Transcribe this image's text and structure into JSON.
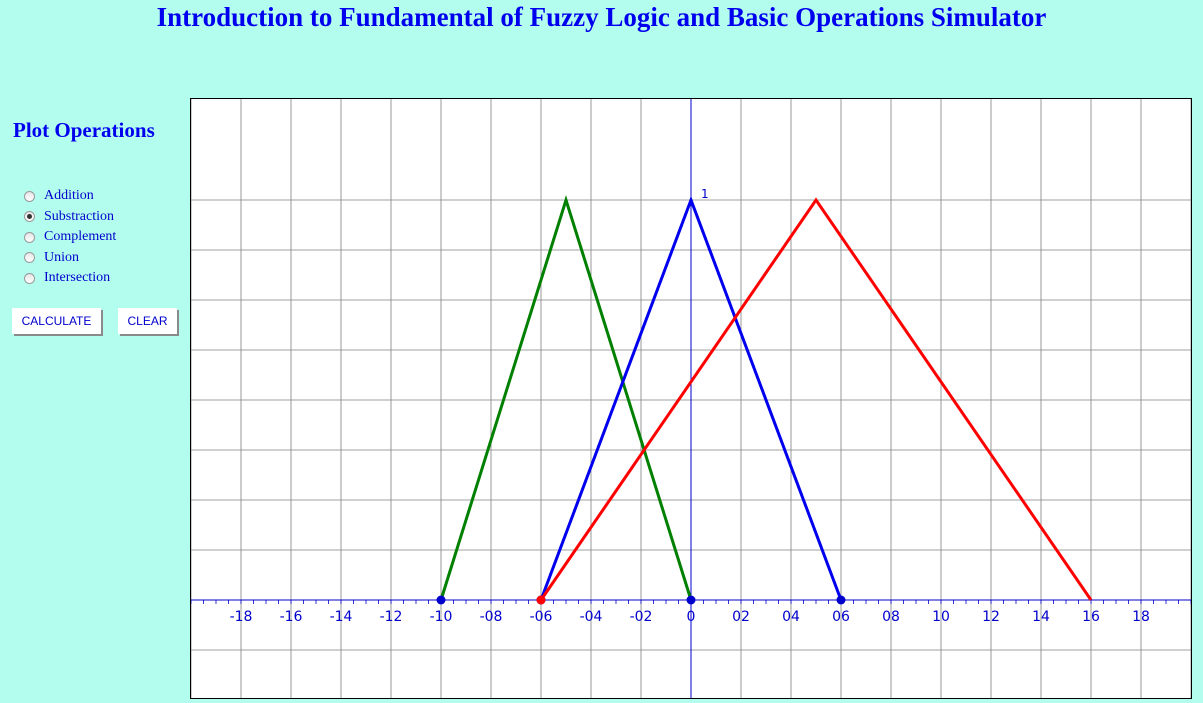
{
  "header": {
    "title": "Introduction to Fundamental of Fuzzy Logic and Basic Operations Simulator"
  },
  "sidebar": {
    "title": "Plot Operations",
    "operations": [
      {
        "label": "Addition",
        "checked": false
      },
      {
        "label": "Substraction",
        "checked": true
      },
      {
        "label": "Complement",
        "checked": false
      },
      {
        "label": "Union",
        "checked": false
      },
      {
        "label": "Intersection",
        "checked": false
      }
    ],
    "calculate_label": "CALCULATE",
    "clear_label": "CLEAR"
  },
  "chart_data": {
    "type": "line",
    "xlim": [
      -20,
      20
    ],
    "ylim": [
      -0.2,
      1.0
    ],
    "grid": true,
    "x_tick_labels": [
      "-18",
      "-16",
      "-14",
      "-12",
      "-10",
      "-08",
      "-06",
      "-04",
      "-02",
      "0",
      "02",
      "04",
      "06",
      "08",
      "10",
      "12",
      "14",
      "16",
      "18"
    ],
    "x_tick_values": [
      -18,
      -16,
      -14,
      -12,
      -10,
      -8,
      -6,
      -4,
      -2,
      0,
      2,
      4,
      6,
      8,
      10,
      12,
      14,
      16,
      18
    ],
    "y_peak_label": "1",
    "series": [
      {
        "color": "#008000",
        "x": [
          -10,
          -5,
          0
        ],
        "y": [
          0,
          1,
          0
        ]
      },
      {
        "color": "#0000ee",
        "x": [
          -6,
          0,
          6
        ],
        "y": [
          0,
          1,
          0
        ]
      },
      {
        "color": "#ff0000",
        "x": [
          -6,
          5,
          16
        ],
        "y": [
          0,
          1,
          0
        ]
      }
    ],
    "points": [
      {
        "x": -10,
        "y": 0,
        "color": "#0000cc"
      },
      {
        "x": -6,
        "y": 0,
        "color": "#0000cc"
      },
      {
        "x": 0,
        "y": 0,
        "color": "#0000cc"
      },
      {
        "x": 6,
        "y": 0,
        "color": "#0000cc"
      },
      {
        "x": -6,
        "y": 0,
        "color": "#ff0000"
      }
    ],
    "axis_color": "#0000cc",
    "grid_color": "#808080"
  }
}
